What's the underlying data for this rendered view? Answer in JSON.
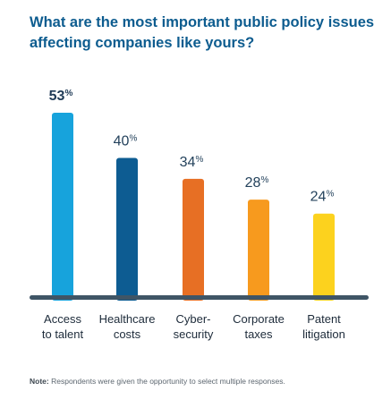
{
  "chart_data": {
    "type": "bar",
    "title": "What are the most important public policy issues affecting companies like yours?",
    "categories": [
      [
        "Access",
        "to talent"
      ],
      [
        "Healthcare",
        "costs"
      ],
      [
        "Cyber-",
        "security"
      ],
      [
        "Corporate",
        "taxes"
      ],
      [
        "Patent",
        "litigation"
      ]
    ],
    "values": [
      53,
      40,
      34,
      28,
      24
    ],
    "value_labels": [
      "53%",
      "40%",
      "34%",
      "28%",
      "24%"
    ],
    "colors": [
      "#17a3dc",
      "#0d5c92",
      "#e76f24",
      "#f79a1e",
      "#fcd21e"
    ],
    "axis_color": "#3f5566",
    "ylim": [
      0,
      53
    ]
  },
  "note": {
    "label": "Note:",
    "text": "Respondents were given the opportunity to select multiple responses."
  }
}
